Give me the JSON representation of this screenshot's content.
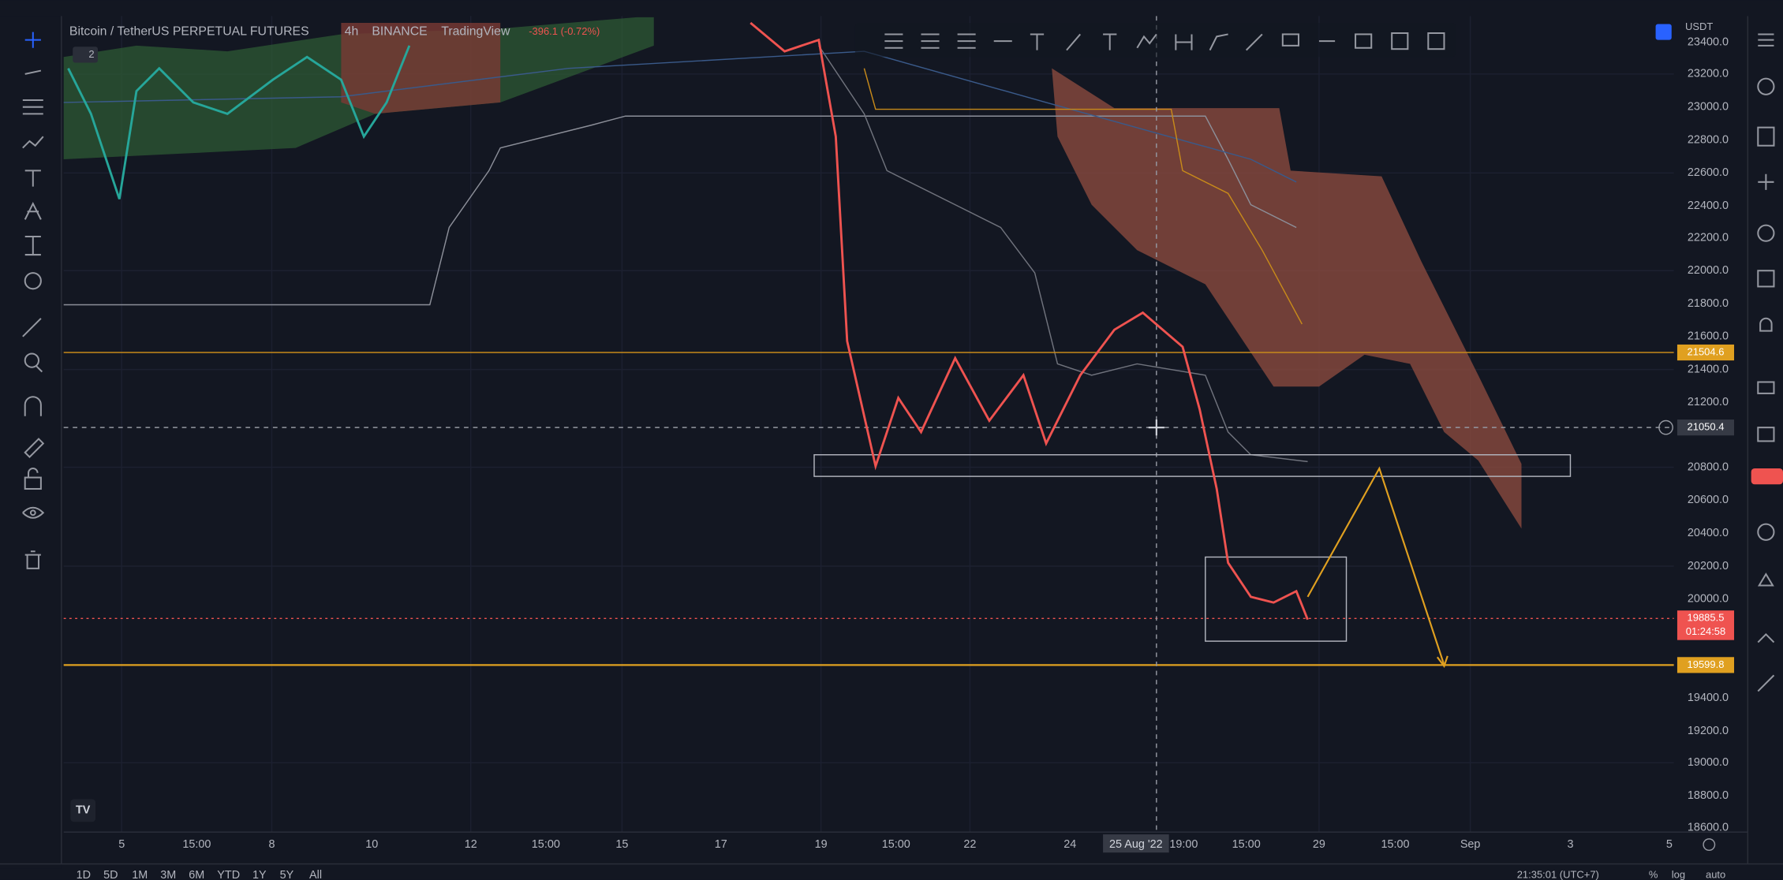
{
  "header": {
    "symbol": "Bitcoin / TetherUS PERPETUAL FUTURES",
    "interval": "4h",
    "exchange": "BINANCE",
    "source": "TradingView",
    "change": "-396.1 (-0.72%)",
    "badge": "2"
  },
  "price_axis": {
    "currency": "USDT",
    "labels": [
      "23400.0",
      "23200.0",
      "23000.0",
      "22800.0",
      "22600.0",
      "22400.0",
      "22200.0",
      "22000.0",
      "21800.0",
      "21600.0",
      "21400.0",
      "21200.0",
      "20800.0",
      "20600.0",
      "20400.0",
      "20200.0",
      "20000.0",
      "19400.0",
      "19200.0",
      "19000.0",
      "18800.0",
      "18600.0"
    ],
    "tags": {
      "level_high": "21504.6",
      "crosshair": "21050.4",
      "last_price": "19885.5",
      "countdown": "01:24:58",
      "level_low": "19599.8"
    }
  },
  "time_axis": {
    "labels": [
      "5",
      "15:00",
      "8",
      "10",
      "12",
      "15:00",
      "15",
      "17",
      "19",
      "15:00",
      "22",
      "24",
      "25 Aug '22",
      "19:00",
      "15:00",
      "29",
      "15:00",
      "Sep",
      "3",
      "5"
    ]
  },
  "bottom_bar": {
    "ranges": [
      "1D",
      "5D",
      "1M",
      "3M",
      "6M",
      "YTD",
      "1Y",
      "5Y",
      "All"
    ],
    "clock": "21:35:01 (UTC+7)",
    "percent": "%",
    "log": "log",
    "auto": "auto"
  }
}
